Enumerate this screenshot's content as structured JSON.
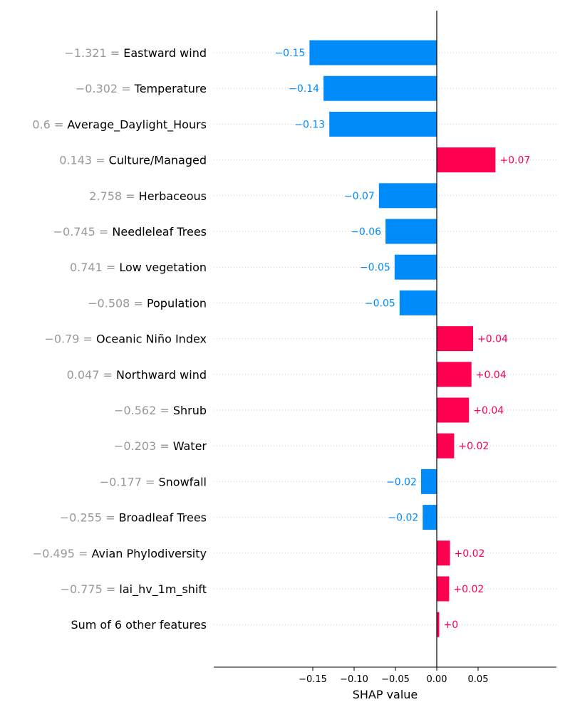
{
  "chart_data": {
    "type": "bar",
    "orientation": "horizontal",
    "xlabel": "SHAP value",
    "xlim": [
      -0.178,
      0.095
    ],
    "xticks": [
      -0.15,
      -0.1,
      -0.05,
      0.0,
      0.05
    ],
    "xtick_labels": [
      "−0.15",
      "−0.10",
      "−0.05",
      "0.00",
      "0.05"
    ],
    "colors": {
      "positive": "#ff0051",
      "negative": "#008bfb",
      "feature_value": "#999999"
    },
    "grid": "dotted horizontal lines per feature",
    "features": [
      {
        "value_label": "−1.321 = ",
        "name": "Eastward wind",
        "shap": -0.154,
        "bar_label": "−0.15"
      },
      {
        "value_label": "−0.302 = ",
        "name": "Temperature",
        "shap": -0.137,
        "bar_label": "−0.14"
      },
      {
        "value_label": "0.6 = ",
        "name": "Average_Daylight_Hours",
        "shap": -0.13,
        "bar_label": "−0.13"
      },
      {
        "value_label": "0.143 = ",
        "name": "Culture/Managed",
        "shap": 0.071,
        "bar_label": "+0.07"
      },
      {
        "value_label": "2.758 = ",
        "name": "Herbaceous",
        "shap": -0.07,
        "bar_label": "−0.07"
      },
      {
        "value_label": "−0.745 = ",
        "name": "Needleleaf Trees",
        "shap": -0.062,
        "bar_label": "−0.06"
      },
      {
        "value_label": "0.741 = ",
        "name": "Low vegetation",
        "shap": -0.051,
        "bar_label": "−0.05"
      },
      {
        "value_label": "−0.508 = ",
        "name": "Population",
        "shap": -0.045,
        "bar_label": "−0.05"
      },
      {
        "value_label": "−0.79 = ",
        "name": "Oceanic Niño Index",
        "shap": 0.044,
        "bar_label": "+0.04"
      },
      {
        "value_label": "0.047 = ",
        "name": "Northward wind",
        "shap": 0.042,
        "bar_label": "+0.04"
      },
      {
        "value_label": "−0.562 = ",
        "name": "Shrub",
        "shap": 0.039,
        "bar_label": "+0.04"
      },
      {
        "value_label": "−0.203 = ",
        "name": "Water",
        "shap": 0.021,
        "bar_label": "+0.02"
      },
      {
        "value_label": "−0.177 = ",
        "name": "Snowfall",
        "shap": -0.019,
        "bar_label": "−0.02"
      },
      {
        "value_label": "−0.255 = ",
        "name": "Broadleaf Trees",
        "shap": -0.017,
        "bar_label": "−0.02"
      },
      {
        "value_label": "−0.495 = ",
        "name": "Avian Phylodiversity",
        "shap": 0.016,
        "bar_label": "+0.02"
      },
      {
        "value_label": "−0.775 = ",
        "name": "lai_hv_1m_shift",
        "shap": 0.015,
        "bar_label": "+0.02"
      },
      {
        "value_label": "",
        "name": "Sum of 6 other features",
        "shap": 0.003,
        "bar_label": "+0"
      }
    ]
  }
}
